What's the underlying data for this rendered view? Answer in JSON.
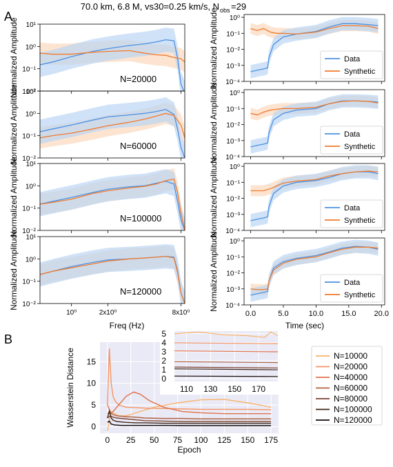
{
  "figure": {
    "title_main": "70.0 km, 6.8 M, vs30=0.25 km/s, N",
    "title_sub": "obs",
    "title_tail": "=29",
    "panel_a": "A",
    "panel_b": "B"
  },
  "colors": {
    "data": "#4a90e2",
    "synthetic": "#f07a2a",
    "data_band": "#bcd5f3",
    "synthetic_band": "#fbd8bd",
    "panel_b_bg": "#eaeaf6"
  },
  "chart_data": [
    {
      "type": "line",
      "name": "spectra",
      "xlabel": "Freq (Hz)",
      "ylabel": "Normalized Amplitude",
      "xscale": "log",
      "yscale": "log",
      "xlim": [
        0.55,
        8.6
      ],
      "ylim": [
        0.01,
        10
      ],
      "x_ticks": [
        {
          "v": 1,
          "label": "10⁰"
        },
        {
          "v": 2,
          "label": "2x10⁰"
        },
        {
          "v": 8,
          "label": "8x10⁰"
        }
      ],
      "y_ticks": [
        {
          "v": 10,
          "label": "10¹"
        },
        {
          "v": 1,
          "label": "10⁰"
        },
        {
          "v": 0.1,
          "label": "10⁻¹"
        },
        {
          "v": 0.01,
          "label": "10⁻²"
        }
      ],
      "series_names": [
        "Data",
        "Synthetic"
      ],
      "panels": [
        {
          "label": "N=20000",
          "data": {
            "x": [
              0.55,
              0.7,
              1,
              1.5,
              2,
              3,
              4,
              5,
              6,
              7,
              7.5,
              8,
              8.6
            ],
            "y": [
              0.15,
              0.2,
              0.35,
              0.6,
              0.8,
              1.1,
              1.3,
              1.6,
              2.0,
              1.8,
              0.3,
              0.02,
              0.008
            ]
          },
          "synthetic": {
            "x": [
              0.55,
              0.7,
              1,
              1.5,
              2,
              3,
              4,
              5,
              6,
              7,
              8,
              8.6
            ],
            "y": [
              0.5,
              0.45,
              0.45,
              0.55,
              0.6,
              0.65,
              0.5,
              0.42,
              0.4,
              0.32,
              0.28,
              0.2
            ]
          }
        },
        {
          "label": "N=60000",
          "data": {
            "x": [
              0.55,
              0.7,
              1,
              1.5,
              2,
              3,
              4,
              5,
              6,
              7,
              7.5,
              8,
              8.6
            ],
            "y": [
              0.15,
              0.2,
              0.3,
              0.5,
              0.7,
              0.85,
              1.0,
              1.2,
              1.5,
              0.9,
              0.2,
              0.03,
              0.01
            ]
          },
          "synthetic": {
            "x": [
              0.55,
              0.7,
              1,
              1.5,
              2,
              3,
              4,
              5,
              6,
              7,
              8,
              8.6
            ],
            "y": [
              0.08,
              0.1,
              0.13,
              0.2,
              0.28,
              0.4,
              0.55,
              0.75,
              1.0,
              0.8,
              0.3,
              0.08
            ]
          }
        },
        {
          "label": "N=100000",
          "data": {
            "x": [
              0.55,
              0.7,
              1,
              1.5,
              2,
              3,
              4,
              5,
              6,
              7,
              7.5,
              8,
              8.6
            ],
            "y": [
              0.15,
              0.2,
              0.3,
              0.5,
              0.7,
              0.9,
              1.0,
              1.3,
              1.6,
              1.2,
              0.2,
              0.03,
              0.01
            ]
          },
          "synthetic": {
            "x": [
              0.55,
              0.7,
              1,
              1.5,
              2,
              3,
              4,
              5,
              6,
              7,
              7.5,
              8,
              8.6
            ],
            "y": [
              0.15,
              0.18,
              0.25,
              0.45,
              0.6,
              0.8,
              0.95,
              1.2,
              1.7,
              2.0,
              0.5,
              0.06,
              0.01
            ]
          }
        },
        {
          "label": "N=120000",
          "data": {
            "x": [
              0.55,
              0.7,
              1,
              1.5,
              2,
              3,
              4,
              5,
              6,
              7,
              7.5,
              8,
              8.6
            ],
            "y": [
              0.2,
              0.28,
              0.45,
              0.7,
              0.9,
              1.0,
              1.1,
              1.2,
              1.3,
              1.2,
              0.3,
              0.03,
              0.01
            ]
          },
          "synthetic": {
            "x": [
              0.55,
              0.7,
              1,
              1.5,
              2,
              3,
              4,
              5,
              6,
              7,
              7.5,
              8,
              8.6
            ],
            "y": [
              0.2,
              0.28,
              0.4,
              0.6,
              0.8,
              1.0,
              1.1,
              1.2,
              1.3,
              1.1,
              0.25,
              0.03,
              0.01
            ]
          }
        }
      ]
    },
    {
      "type": "line",
      "name": "envelopes",
      "xlabel": "Time (sec)",
      "ylabel": "Normalized Amplitude",
      "yscale": "log",
      "xlim": [
        -1,
        20.5
      ],
      "ylim": [
        0.0001,
        1.5
      ],
      "x_ticks": [
        0,
        5,
        10,
        15,
        20
      ],
      "x_tick_labels": [
        "0.0",
        "5.0",
        "10.0",
        "15.0",
        "20.0"
      ],
      "y_ticks": [
        {
          "v": 1,
          "label": "10⁰"
        },
        {
          "v": 0.1,
          "label": "10⁻¹"
        },
        {
          "v": 0.01,
          "label": "10⁻²"
        },
        {
          "v": 0.001,
          "label": "10⁻³"
        },
        {
          "v": 0.0001,
          "label": "10⁻⁴"
        }
      ],
      "legend": [
        "Data",
        "Synthetic"
      ],
      "legend_position": "lower-right",
      "panels": [
        {
          "data": {
            "x": [
              0,
              1,
              2,
              2.6,
              2.8,
              3.5,
              5,
              7,
              10,
              12,
              14,
              16,
              18,
              19.5
            ],
            "y": [
              0.0004,
              0.0005,
              0.0006,
              0.0007,
              0.003,
              0.02,
              0.06,
              0.09,
              0.13,
              0.25,
              0.4,
              0.4,
              0.35,
              0.3
            ]
          },
          "synthetic": {
            "x": [
              0,
              1,
              2,
              3,
              4,
              5,
              7,
              10,
              12,
              14,
              16,
              18,
              19.5
            ],
            "y": [
              0.2,
              0.15,
              0.2,
              0.12,
              0.1,
              0.1,
              0.09,
              0.12,
              0.2,
              0.3,
              0.3,
              0.28,
              0.2
            ]
          }
        },
        {
          "data": {
            "x": [
              0,
              1,
              2,
              2.6,
              2.8,
              3.5,
              5,
              7,
              10,
              12,
              14,
              16,
              18,
              19.5
            ],
            "y": [
              0.0004,
              0.0005,
              0.0006,
              0.0007,
              0.003,
              0.02,
              0.05,
              0.08,
              0.1,
              0.2,
              0.3,
              0.3,
              0.28,
              0.25
            ]
          },
          "synthetic": {
            "x": [
              0,
              1,
              2,
              3,
              4,
              5,
              7,
              10,
              12,
              14,
              16,
              18,
              19.5
            ],
            "y": [
              0.05,
              0.04,
              0.06,
              0.08,
              0.09,
              0.1,
              0.1,
              0.12,
              0.2,
              0.28,
              0.3,
              0.28,
              0.22
            ]
          }
        },
        {
          "data": {
            "x": [
              0,
              1,
              2,
              2.6,
              2.8,
              3.5,
              5,
              7,
              10,
              12,
              14,
              16,
              18,
              19.5
            ],
            "y": [
              0.0004,
              0.0005,
              0.0006,
              0.0007,
              0.003,
              0.02,
              0.06,
              0.1,
              0.13,
              0.2,
              0.35,
              0.45,
              0.45,
              0.35
            ]
          },
          "synthetic": {
            "x": [
              0,
              1,
              2,
              3,
              4,
              5,
              7,
              10,
              12,
              14,
              16,
              18,
              19.5
            ],
            "y": [
              0.03,
              0.03,
              0.03,
              0.04,
              0.06,
              0.09,
              0.12,
              0.15,
              0.25,
              0.35,
              0.45,
              0.5,
              0.45
            ]
          }
        },
        {
          "data": {
            "x": [
              0,
              1,
              2,
              2.6,
              2.8,
              3.5,
              5,
              7,
              10,
              12,
              14,
              16,
              18,
              19.5
            ],
            "y": [
              0.0004,
              0.0005,
              0.0006,
              0.0007,
              0.003,
              0.02,
              0.05,
              0.08,
              0.12,
              0.2,
              0.35,
              0.45,
              0.4,
              0.3
            ]
          },
          "synthetic": {
            "x": [
              0,
              1,
              2,
              2.6,
              2.8,
              3.5,
              5,
              7,
              10,
              12,
              14,
              16,
              18,
              19.5
            ],
            "y": [
              0.001,
              0.0009,
              0.0009,
              0.001,
              0.003,
              0.015,
              0.04,
              0.07,
              0.1,
              0.18,
              0.3,
              0.4,
              0.4,
              0.35
            ]
          }
        }
      ]
    },
    {
      "type": "line",
      "name": "wasserstein",
      "xlabel": "Epoch",
      "ylabel": "Wasserstein Distance",
      "xlim": [
        -8,
        183
      ],
      "ylim": [
        -1.5,
        19.5
      ],
      "x_ticks": [
        0,
        25,
        50,
        75,
        100,
        125,
        150,
        175
      ],
      "y_ticks": [
        0,
        5,
        10,
        15
      ],
      "grid": true,
      "series": [
        {
          "name": "N=10000",
          "color": "#f9b36a",
          "x": [
            0,
            2,
            4,
            8,
            12,
            20,
            35,
            50,
            75,
            100,
            125,
            150,
            175
          ],
          "y": [
            -1.0,
            1.5,
            3.5,
            3.0,
            2.5,
            2.5,
            3.5,
            4.5,
            5.5,
            6.2,
            6.3,
            5.5,
            4.5
          ]
        },
        {
          "name": "N=20000",
          "color": "#f59360",
          "x": [
            0,
            2,
            4,
            6,
            8,
            12,
            20,
            40,
            60,
            80,
            100,
            125,
            150,
            175
          ],
          "y": [
            5,
            18,
            10,
            7,
            6,
            5,
            4.5,
            4.3,
            4.2,
            4.1,
            4.0,
            4.0,
            4.0,
            3.9
          ]
        },
        {
          "name": "N=40000",
          "color": "#e07048",
          "x": [
            0,
            4,
            8,
            12,
            20,
            28,
            35,
            45,
            60,
            80,
            100,
            125,
            150,
            175
          ],
          "y": [
            5,
            3,
            4,
            5,
            7,
            8,
            7.5,
            6,
            4.5,
            3.5,
            3.2,
            3.0,
            3.0,
            3.0
          ]
        },
        {
          "name": "N=60000",
          "color": "#b06040",
          "x": [
            0,
            3,
            6,
            10,
            20,
            30,
            40,
            60,
            80,
            100,
            125,
            150,
            175
          ],
          "y": [
            3,
            3.2,
            2.8,
            2.5,
            2.3,
            2.2,
            2.0,
            1.9,
            1.9,
            1.8,
            1.8,
            1.8,
            1.8
          ]
        },
        {
          "name": "N=80000",
          "color": "#7a4030",
          "x": [
            0,
            3,
            6,
            10,
            20,
            30,
            40,
            60,
            80,
            100,
            125,
            150,
            175
          ],
          "y": [
            2,
            2.5,
            2.2,
            2.0,
            1.8,
            1.6,
            1.4,
            1.3,
            1.2,
            1.2,
            1.2,
            1.2,
            1.2
          ]
        },
        {
          "name": "N=100000",
          "color": "#3d2419",
          "x": [
            0,
            2,
            4,
            6,
            10,
            20,
            30,
            40,
            60,
            80,
            100,
            125,
            150,
            175
          ],
          "y": [
            2,
            3.6,
            2,
            1.5,
            1.2,
            1.0,
            0.9,
            0.9,
            0.8,
            0.8,
            0.8,
            0.8,
            0.8,
            0.8
          ]
        },
        {
          "name": "N=120000",
          "color": "#120806",
          "x": [
            0,
            2,
            4,
            8,
            15,
            25,
            40,
            60,
            80,
            100,
            125,
            150,
            175
          ],
          "y": [
            1,
            1.3,
            0.6,
            0.4,
            0.3,
            0.3,
            0.3,
            0.3,
            0.25,
            0.25,
            0.25,
            0.25,
            0.25
          ]
        }
      ],
      "inset": {
        "xlim": [
          100,
          186
        ],
        "ylim": [
          -0.3,
          5.3
        ],
        "x_ticks": [
          110,
          130,
          150,
          170
        ],
        "y_ticks": [
          0,
          1,
          2,
          3,
          4,
          5
        ],
        "series_levels": [
          {
            "name": "N=10000",
            "x": [
              100,
              120,
              140,
              160,
              175,
              180,
              186
            ],
            "y": [
              5.0,
              5.2,
              4.9,
              4.8,
              4.6,
              5.2,
              4.8
            ]
          },
          {
            "name": "N=20000",
            "x": [
              100,
              186
            ],
            "y": [
              4.0,
              3.9
            ]
          },
          {
            "name": "N=40000",
            "x": [
              100,
              186
            ],
            "y": [
              3.1,
              3.0
            ]
          },
          {
            "name": "N=60000",
            "x": [
              100,
              186
            ],
            "y": [
              1.9,
              1.8
            ]
          },
          {
            "name": "N=80000",
            "x": [
              100,
              186
            ],
            "y": [
              1.3,
              1.2
            ]
          },
          {
            "name": "N=100000",
            "x": [
              100,
              186
            ],
            "y": [
              1.1,
              1.0
            ]
          },
          {
            "name": "N=120000",
            "x": [
              100,
              186
            ],
            "y": [
              0.3,
              0.25
            ]
          }
        ]
      }
    }
  ]
}
